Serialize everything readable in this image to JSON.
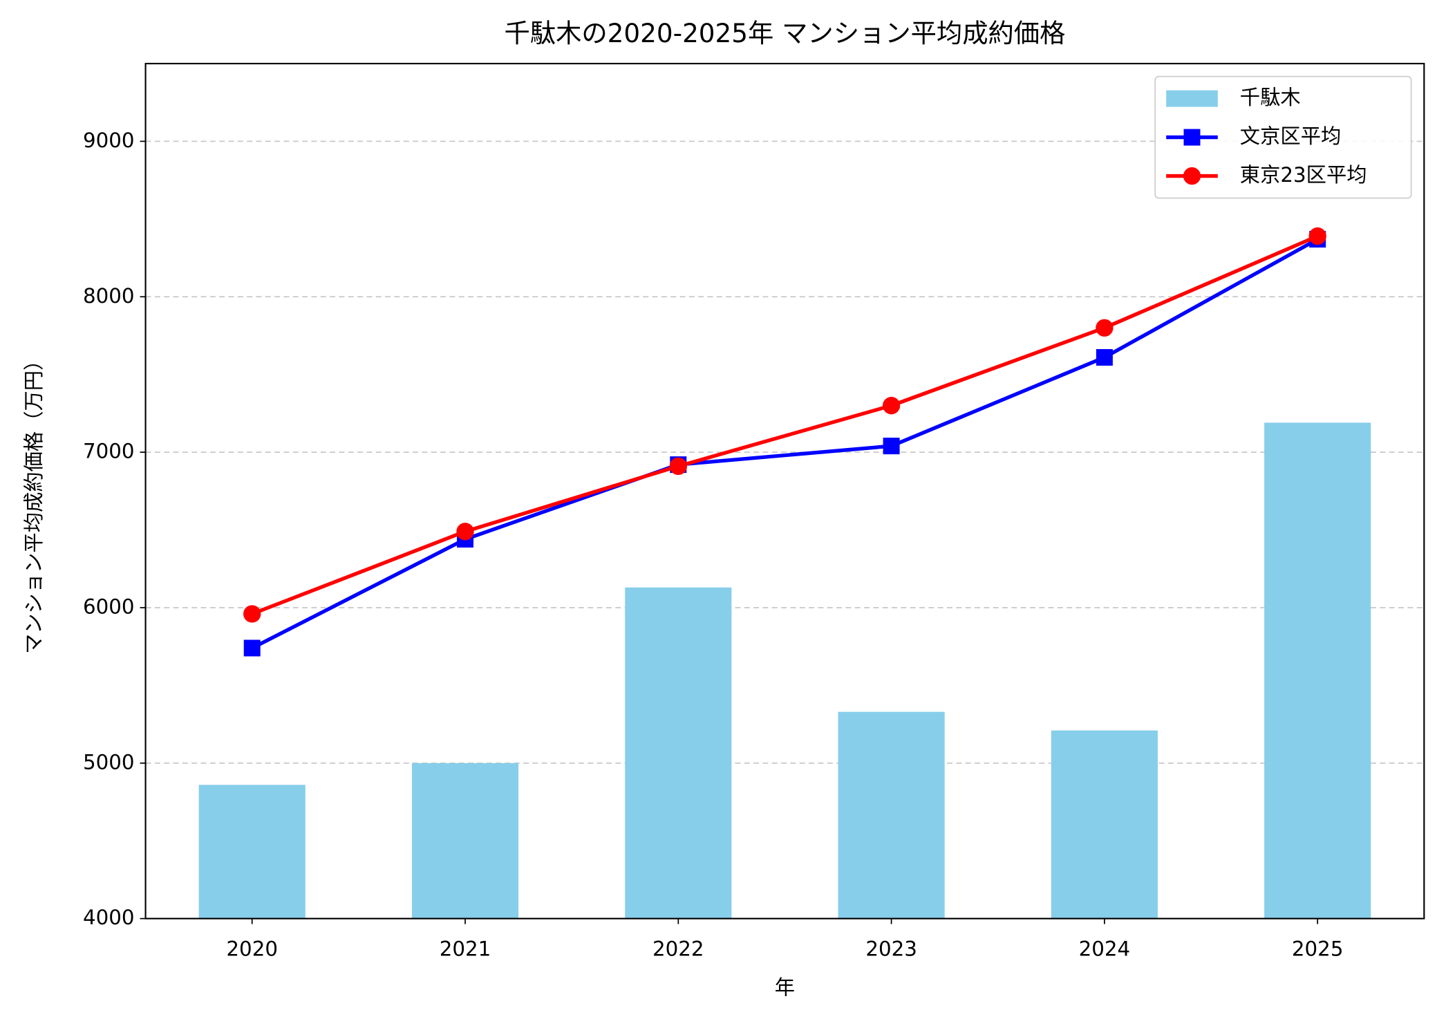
{
  "chart_data": {
    "type": "bar_line",
    "title": "千駄木の2020-2025年 マンション平均成約価格",
    "x_label": "年",
    "y_label": "マンション平均成約価格（万円）",
    "categories": [
      "2020",
      "2021",
      "2022",
      "2023",
      "2024",
      "2025"
    ],
    "series": [
      {
        "name": "千駄木",
        "type": "bar",
        "color": "#87ceeb",
        "values": [
          4860,
          5000,
          6130,
          5330,
          5210,
          7190
        ]
      },
      {
        "name": "文京区平均",
        "type": "line",
        "marker": "square",
        "color": "#0000ff",
        "values": [
          5740,
          6440,
          6920,
          7040,
          7610,
          8370
        ]
      },
      {
        "name": "東京23区平均",
        "type": "line",
        "marker": "circle",
        "color": "#ff0000",
        "values": [
          5960,
          6490,
          6910,
          7300,
          7800,
          8390
        ]
      }
    ],
    "ylim": [
      4000,
      9500
    ],
    "yticks": [
      4000,
      5000,
      6000,
      7000,
      8000,
      9000
    ],
    "grid": true,
    "legend": "upper right"
  }
}
